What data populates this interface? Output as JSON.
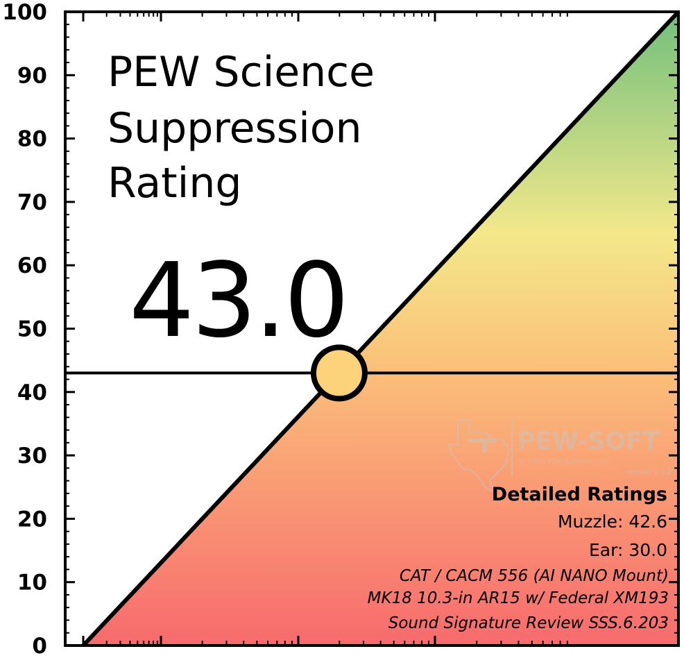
{
  "chart_data": {
    "type": "line",
    "title": [
      "PEW Science",
      "Suppression",
      "Rating"
    ],
    "rating_value": 43.0,
    "rating_label": "43.0",
    "ylim": [
      0,
      100
    ],
    "xlim": [
      0,
      100
    ],
    "y_ticks": [
      "0",
      "10",
      "20",
      "30",
      "40",
      "50",
      "60",
      "70",
      "80",
      "90",
      "100"
    ],
    "diagonal": {
      "x": [
        0,
        100
      ],
      "y": [
        0,
        100
      ]
    },
    "marker": {
      "x": 43.0,
      "y": 43.0
    },
    "gradient_colors": [
      "#f76a6d",
      "#fbc27a",
      "#f3e88a",
      "#72c07c"
    ],
    "marker_fill": "#fcd27b",
    "detailed_ratings": {
      "heading": "Detailed Ratings",
      "muzzle": "Muzzle: 42.6",
      "ear": "Ear: 30.0",
      "lines": [
        "CAT / CACM 556 (AI NANO Mount)",
        "MK18 10.3-in AR15 w/ Federal XM193",
        "Sound Signature Review SSS.6.203"
      ]
    },
    "watermark": {
      "brand": "PEW-SOFT",
      "tm": "TM",
      "copyright": "© 2020 PEW Science, LLC",
      "version": "Version 1.0.2"
    }
  }
}
